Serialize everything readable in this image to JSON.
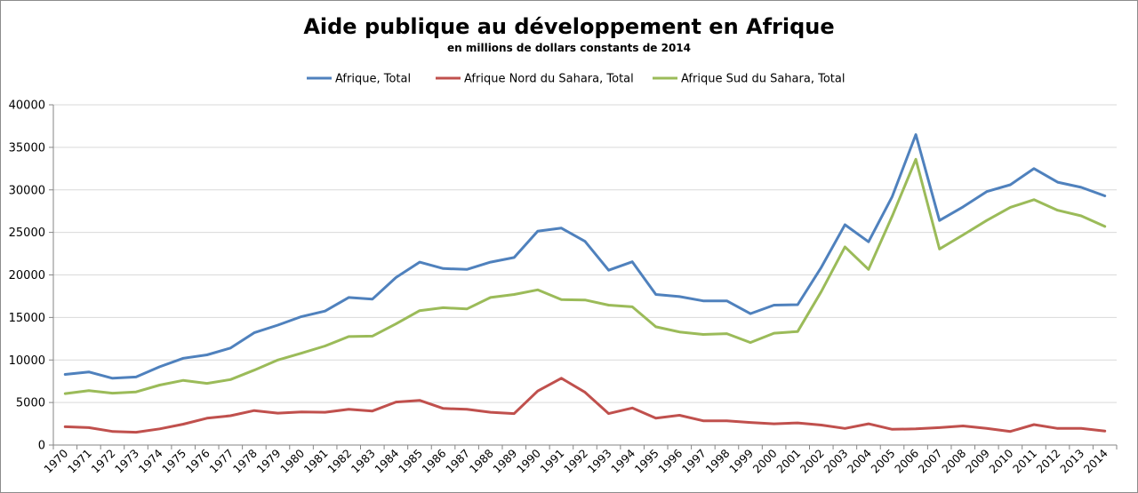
{
  "chart_data": {
    "type": "line",
    "title": "Aide publique au développement en Afrique",
    "subtitle": "en millions de dollars constants de 2014",
    "legend_position": "top",
    "grid": true,
    "ylim": [
      0,
      40000
    ],
    "yticks": [
      0,
      5000,
      10000,
      15000,
      20000,
      25000,
      30000,
      35000,
      40000
    ],
    "x": [
      1970,
      1971,
      1972,
      1973,
      1974,
      1975,
      1976,
      1977,
      1978,
      1979,
      1980,
      1981,
      1982,
      1983,
      1984,
      1985,
      1986,
      1987,
      1988,
      1989,
      1990,
      1991,
      1992,
      1993,
      1994,
      1995,
      1996,
      1997,
      1998,
      1999,
      2000,
      2001,
      2002,
      2003,
      2004,
      2005,
      2006,
      2007,
      2008,
      2009,
      2010,
      2011,
      2012,
      2013,
      2014
    ],
    "series": [
      {
        "name": "Afrique, Total",
        "color": "#4f81bd",
        "values": [
          8300,
          8600,
          7850,
          8000,
          9200,
          10200,
          10600,
          11400,
          13200,
          14100,
          15100,
          15750,
          17350,
          17150,
          19700,
          21500,
          20750,
          20650,
          21500,
          22050,
          25150,
          25500,
          23950,
          20550,
          21550,
          17700,
          17450,
          16950,
          16950,
          15450,
          16450,
          16500,
          20900,
          25900,
          23900,
          29200,
          36500,
          26400,
          28000,
          29800,
          30600,
          32500,
          30900,
          30300,
          29300
        ]
      },
      {
        "name": "Afrique Nord du Sahara, Total",
        "color": "#c0504d",
        "values": [
          2150,
          2050,
          1600,
          1500,
          1900,
          2450,
          3150,
          3450,
          4050,
          3750,
          3900,
          3850,
          4200,
          4000,
          5050,
          5250,
          4300,
          4200,
          3850,
          3700,
          6350,
          7850,
          6200,
          3700,
          4350,
          3150,
          3500,
          2850,
          2850,
          2650,
          2500,
          2600,
          2350,
          1950,
          2500,
          1850,
          1900,
          2050,
          2250,
          1950,
          1600,
          2400,
          1950,
          1950,
          1650
        ]
      },
      {
        "name": "Afrique Sud du Sahara, Total",
        "color": "#9bbb59",
        "values": [
          6050,
          6400,
          6100,
          6250,
          7050,
          7600,
          7250,
          7700,
          8800,
          10000,
          10800,
          11650,
          12750,
          12800,
          14250,
          15800,
          16150,
          16000,
          17350,
          17700,
          18250,
          17100,
          17050,
          16450,
          16250,
          13900,
          13300,
          13000,
          13100,
          12050,
          13150,
          13350,
          18050,
          23300,
          20650,
          26900,
          33600,
          23050,
          24700,
          26400,
          27950,
          28850,
          27600,
          26950,
          25700
        ]
      }
    ]
  }
}
